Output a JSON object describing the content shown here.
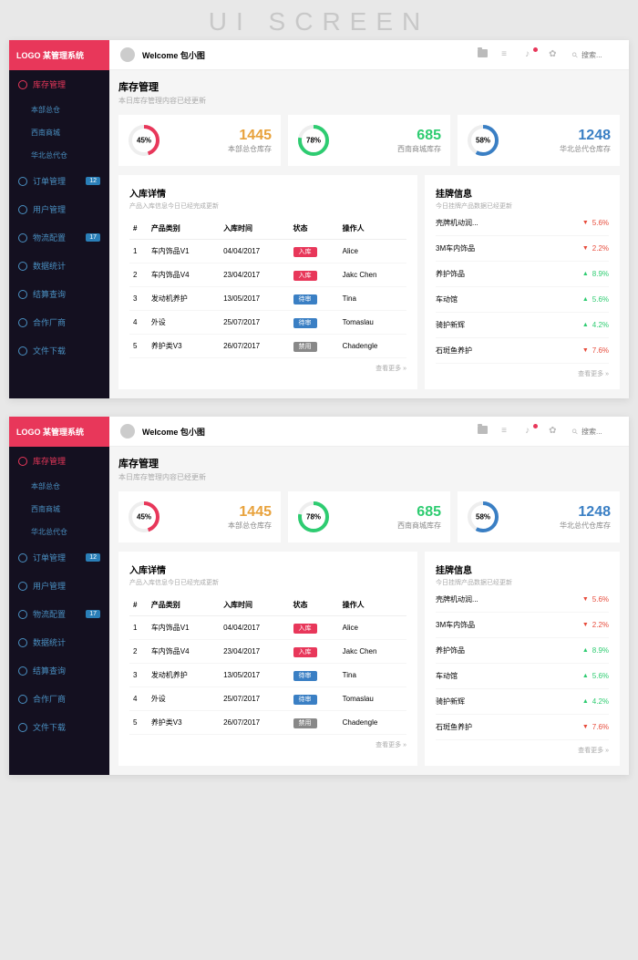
{
  "page_label": "UI SCREEN",
  "logo": "LOGO 某管理系统",
  "welcome": "Welcome 包小图",
  "search_placeholder": "搜索...",
  "sidebar": {
    "items": [
      {
        "label": "库存管理",
        "active": true,
        "children": [
          "本部总仓",
          "西南商城",
          "华北总代仓"
        ]
      },
      {
        "label": "订单管理",
        "badge": "12"
      },
      {
        "label": "用户管理"
      },
      {
        "label": "物流配置",
        "badge": "17"
      },
      {
        "label": "数据统计"
      },
      {
        "label": "结算查询"
      },
      {
        "label": "合作厂商"
      },
      {
        "label": "文件下载"
      }
    ]
  },
  "section": {
    "title": "库存管理",
    "sub": "本日库存管理内容已经更新"
  },
  "stats": [
    {
      "pct": 45,
      "pct_label": "45%",
      "value": "1445",
      "label": "本部总仓库存",
      "color": "#e8a23c",
      "ring": "#e8375a"
    },
    {
      "pct": 78,
      "pct_label": "78%",
      "value": "685",
      "label": "西南商城库存",
      "color": "#2ecc71",
      "ring": "#2ecc71"
    },
    {
      "pct": 58,
      "pct_label": "58%",
      "value": "1248",
      "label": "华北总代仓库存",
      "color": "#3a7fc4",
      "ring": "#3a7fc4"
    }
  ],
  "inbound": {
    "title": "入库详情",
    "sub": "产品入库信息今日已经完成更新",
    "cols": [
      "#",
      "产品类别",
      "入库时间",
      "状态",
      "操作人"
    ],
    "rows": [
      {
        "n": "1",
        "cat": "车内饰品V1",
        "date": "04/04/2017",
        "status": "入库",
        "status_bg": "#e8375a",
        "op": "Alice"
      },
      {
        "n": "2",
        "cat": "车内饰品V4",
        "date": "23/04/2017",
        "status": "入库",
        "status_bg": "#e8375a",
        "op": "Jakc Chen"
      },
      {
        "n": "3",
        "cat": "发动机养护",
        "date": "13/05/2017",
        "status": "待审",
        "status_bg": "#3a7fc4",
        "op": "Tina"
      },
      {
        "n": "4",
        "cat": "外设",
        "date": "25/07/2017",
        "status": "待审",
        "status_bg": "#3a7fc4",
        "op": "Tomaslau"
      },
      {
        "n": "5",
        "cat": "养护类V3",
        "date": "26/07/2017",
        "status": "禁用",
        "status_bg": "#888888",
        "op": "Chadengle"
      }
    ],
    "more": "查看更多 »"
  },
  "listing": {
    "title": "挂牌信息",
    "sub": "今日挂牌产品数据已经更新",
    "rows": [
      {
        "name": "壳牌机动润...",
        "dir": "down",
        "val": "5.6%"
      },
      {
        "name": "3M车内饰品",
        "dir": "down",
        "val": "2.2%"
      },
      {
        "name": "养护饰品",
        "dir": "up",
        "val": "8.9%"
      },
      {
        "name": "车动馆",
        "dir": "up",
        "val": "5.6%"
      },
      {
        "name": "骑护新辉",
        "dir": "up",
        "val": "4.2%"
      },
      {
        "name": "石斑鱼养护",
        "dir": "down",
        "val": "7.6%"
      }
    ],
    "more": "查看更多 »"
  }
}
